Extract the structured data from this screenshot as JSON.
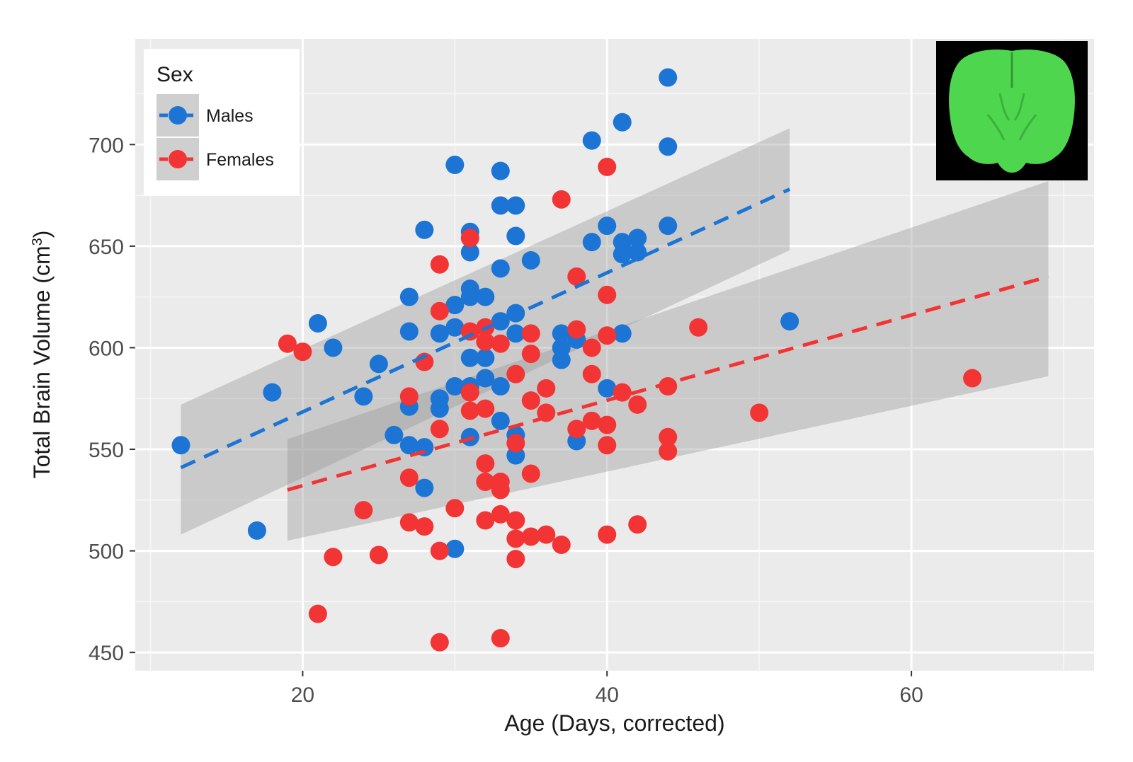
{
  "chart_data": {
    "type": "scatter",
    "title": "",
    "xlabel": "Age (Days, corrected)",
    "ylabel_main": "Total Brain Volume (cm",
    "ylabel_sup": "3",
    "ylabel_end": ")",
    "xlim": [
      9,
      72
    ],
    "ylim": [
      441,
      752
    ],
    "x_ticks": [
      20,
      40,
      60
    ],
    "y_ticks": [
      450,
      500,
      550,
      600,
      650,
      700
    ],
    "x_tick_labels": [
      "20",
      "40",
      "60"
    ],
    "y_tick_labels": [
      "450",
      "500",
      "550",
      "600",
      "650",
      "700"
    ],
    "grid": true,
    "legend": {
      "title": "Sex",
      "position": "top-left"
    },
    "series": [
      {
        "name": "Males",
        "color": "#1c74d4",
        "fit": {
          "x": [
            12,
            52
          ],
          "y": [
            541,
            678
          ],
          "ci_lower": [
            508,
            648
          ],
          "ci_upper": [
            572,
            708
          ]
        },
        "points": [
          [
            12,
            552
          ],
          [
            17,
            510
          ],
          [
            18,
            578
          ],
          [
            21,
            612
          ],
          [
            22,
            600
          ],
          [
            24,
            576
          ],
          [
            25,
            592
          ],
          [
            26,
            557
          ],
          [
            27,
            552
          ],
          [
            27,
            571
          ],
          [
            27,
            608
          ],
          [
            27,
            625
          ],
          [
            28,
            531
          ],
          [
            28,
            551
          ],
          [
            28,
            658
          ],
          [
            29,
            570
          ],
          [
            29,
            575
          ],
          [
            29,
            607
          ],
          [
            30,
            501
          ],
          [
            30,
            581
          ],
          [
            30,
            610
          ],
          [
            30,
            621
          ],
          [
            30,
            690
          ],
          [
            31,
            556
          ],
          [
            31,
            581
          ],
          [
            31,
            595
          ],
          [
            31,
            625
          ],
          [
            31,
            629
          ],
          [
            31,
            647
          ],
          [
            31,
            657
          ],
          [
            32,
            585
          ],
          [
            32,
            595
          ],
          [
            32,
            625
          ],
          [
            33,
            564
          ],
          [
            33,
            581
          ],
          [
            33,
            613
          ],
          [
            33,
            639
          ],
          [
            33,
            670
          ],
          [
            33,
            687
          ],
          [
            34,
            547
          ],
          [
            34,
            557
          ],
          [
            34,
            607
          ],
          [
            34,
            617
          ],
          [
            34,
            655
          ],
          [
            34,
            670
          ],
          [
            35,
            643
          ],
          [
            37,
            594
          ],
          [
            37,
            600
          ],
          [
            37,
            607
          ],
          [
            38,
            554
          ],
          [
            38,
            604
          ],
          [
            39,
            652
          ],
          [
            39,
            702
          ],
          [
            40,
            580
          ],
          [
            40,
            660
          ],
          [
            41,
            607
          ],
          [
            41,
            646
          ],
          [
            41,
            652
          ],
          [
            41,
            711
          ],
          [
            42,
            647
          ],
          [
            42,
            654
          ],
          [
            44,
            660
          ],
          [
            44,
            699
          ],
          [
            44,
            733
          ],
          [
            52,
            613
          ]
        ]
      },
      {
        "name": "Females",
        "color": "#f23434",
        "fit": {
          "x": [
            19,
            69
          ],
          "y": [
            530,
            635
          ],
          "ci_lower": [
            505,
            586
          ],
          "ci_upper": [
            555,
            682
          ]
        },
        "points": [
          [
            19,
            602
          ],
          [
            20,
            598
          ],
          [
            21,
            469
          ],
          [
            22,
            497
          ],
          [
            24,
            520
          ],
          [
            25,
            498
          ],
          [
            27,
            514
          ],
          [
            27,
            536
          ],
          [
            27,
            576
          ],
          [
            28,
            512
          ],
          [
            28,
            593
          ],
          [
            29,
            455
          ],
          [
            29,
            500
          ],
          [
            29,
            560
          ],
          [
            29,
            618
          ],
          [
            29,
            641
          ],
          [
            30,
            521
          ],
          [
            31,
            569
          ],
          [
            31,
            578
          ],
          [
            31,
            608
          ],
          [
            31,
            654
          ],
          [
            32,
            515
          ],
          [
            32,
            534
          ],
          [
            32,
            543
          ],
          [
            32,
            570
          ],
          [
            32,
            603
          ],
          [
            32,
            610
          ],
          [
            33,
            457
          ],
          [
            33,
            518
          ],
          [
            33,
            530
          ],
          [
            33,
            534
          ],
          [
            33,
            602
          ],
          [
            34,
            496
          ],
          [
            34,
            506
          ],
          [
            34,
            515
          ],
          [
            34,
            553
          ],
          [
            34,
            587
          ],
          [
            35,
            507
          ],
          [
            35,
            538
          ],
          [
            35,
            574
          ],
          [
            35,
            597
          ],
          [
            35,
            607
          ],
          [
            36,
            508
          ],
          [
            36,
            568
          ],
          [
            36,
            580
          ],
          [
            37,
            503
          ],
          [
            37,
            673
          ],
          [
            38,
            560
          ],
          [
            38,
            609
          ],
          [
            38,
            635
          ],
          [
            39,
            564
          ],
          [
            39,
            587
          ],
          [
            39,
            600
          ],
          [
            40,
            508
          ],
          [
            40,
            552
          ],
          [
            40,
            562
          ],
          [
            40,
            606
          ],
          [
            40,
            626
          ],
          [
            40,
            689
          ],
          [
            41,
            578
          ],
          [
            42,
            513
          ],
          [
            42,
            572
          ],
          [
            44,
            549
          ],
          [
            44,
            556
          ],
          [
            44,
            581
          ],
          [
            46,
            610
          ],
          [
            50,
            568
          ],
          [
            64,
            585
          ]
        ]
      }
    ]
  },
  "inset_icon": "brain-mri-coronal-icon"
}
